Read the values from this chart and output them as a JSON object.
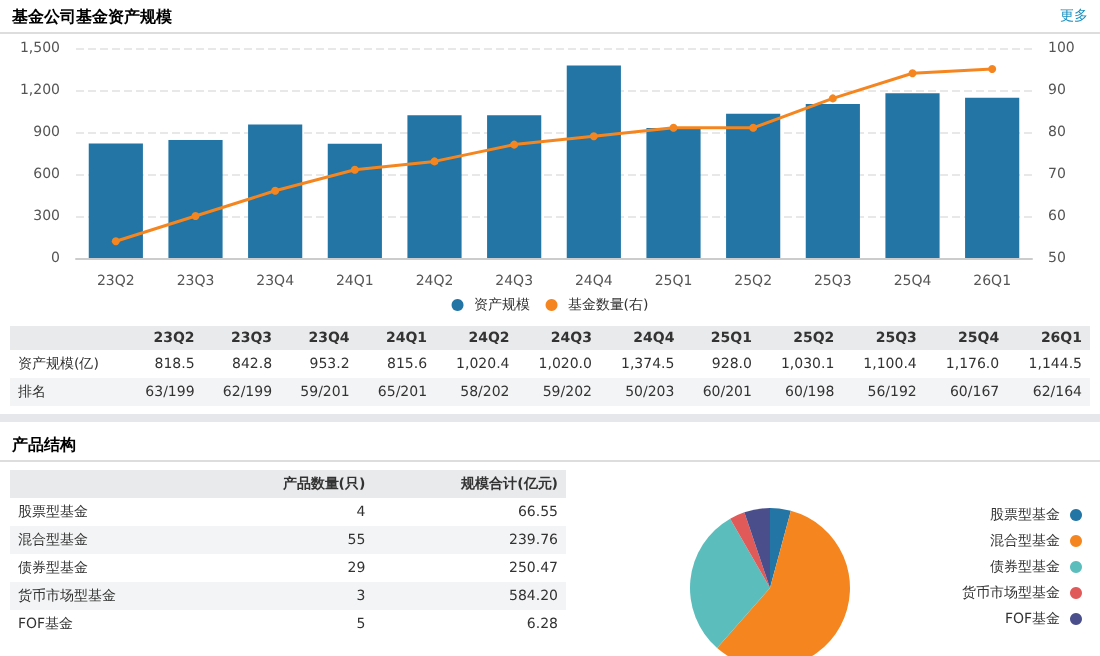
{
  "chart_data": [
    {
      "type": "bar",
      "title": "基金公司基金资产规模",
      "categories": [
        "23Q2",
        "23Q3",
        "23Q4",
        "24Q1",
        "24Q2",
        "24Q3",
        "24Q4",
        "25Q1",
        "25Q2",
        "25Q3",
        "25Q4",
        "26Q1"
      ],
      "series": [
        {
          "name": "资产规模",
          "color": "#2275a5",
          "values": [
            818.5,
            842.8,
            953.2,
            815.6,
            1020.4,
            1020.0,
            1374.5,
            928.0,
            1030.1,
            1100.4,
            1176.0,
            1144.5
          ]
        },
        {
          "name": "基金数量(右)",
          "type": "line",
          "axis": "y2",
          "color": "#f5861f",
          "values": [
            54,
            60,
            66,
            71,
            73,
            77,
            79,
            81,
            81,
            88,
            94,
            95
          ]
        }
      ],
      "ylim": [
        0,
        1500
      ],
      "yticks": [
        0,
        300,
        600,
        900,
        {
          "value": 1200,
          "label": "1,200"
        },
        {
          "value": 1500,
          "label": "1,500"
        }
      ],
      "y2lim": [
        50,
        100
      ],
      "y2ticks": [
        50,
        60,
        70,
        80,
        90,
        100
      ],
      "grid": "y",
      "legend": "bottom",
      "marker": "circle",
      "value_labels": [
        "818.5",
        "842.8",
        "953.2",
        "815.6",
        "1,020.4",
        "1,020.0",
        "1,374.5",
        "928.0",
        "1,030.1",
        "1,100.4",
        "1,176.0",
        "1,144.5"
      ],
      "annotations": [
        "更多",
        "资产规模(亿)",
        "排名",
        "63/199",
        "62/199",
        "59/201",
        "65/201",
        "58/202",
        "59/202",
        "50/203",
        "60/201",
        "60/198",
        "56/192",
        "60/167",
        "62/164"
      ]
    },
    {
      "type": "other",
      "title": "产品结构",
      "categories": [
        "股票型基金",
        "混合型基金",
        "债券型基金",
        "货币市场型基金",
        "FOF基金"
      ],
      "annotations": [
        "产品数量(只)",
        "规模合计(亿元)",
        "4",
        "55",
        "29",
        "3",
        "5",
        "66.55",
        "239.76",
        "250.47",
        "584.20",
        "6.28"
      ]
    },
    {
      "type": "pie",
      "categories": [
        "股票型基金",
        "混合型基金",
        "债券型基金",
        "货币市场型基金",
        "FOF基金"
      ],
      "values": [
        4.2,
        57.3,
        30.2,
        3.1,
        5.2
      ],
      "colors": [
        "#2275a5",
        "#f5861f",
        "#5cbdbd",
        "#e05a5a",
        "#4a4f8c"
      ],
      "legend": "right"
    }
  ]
}
